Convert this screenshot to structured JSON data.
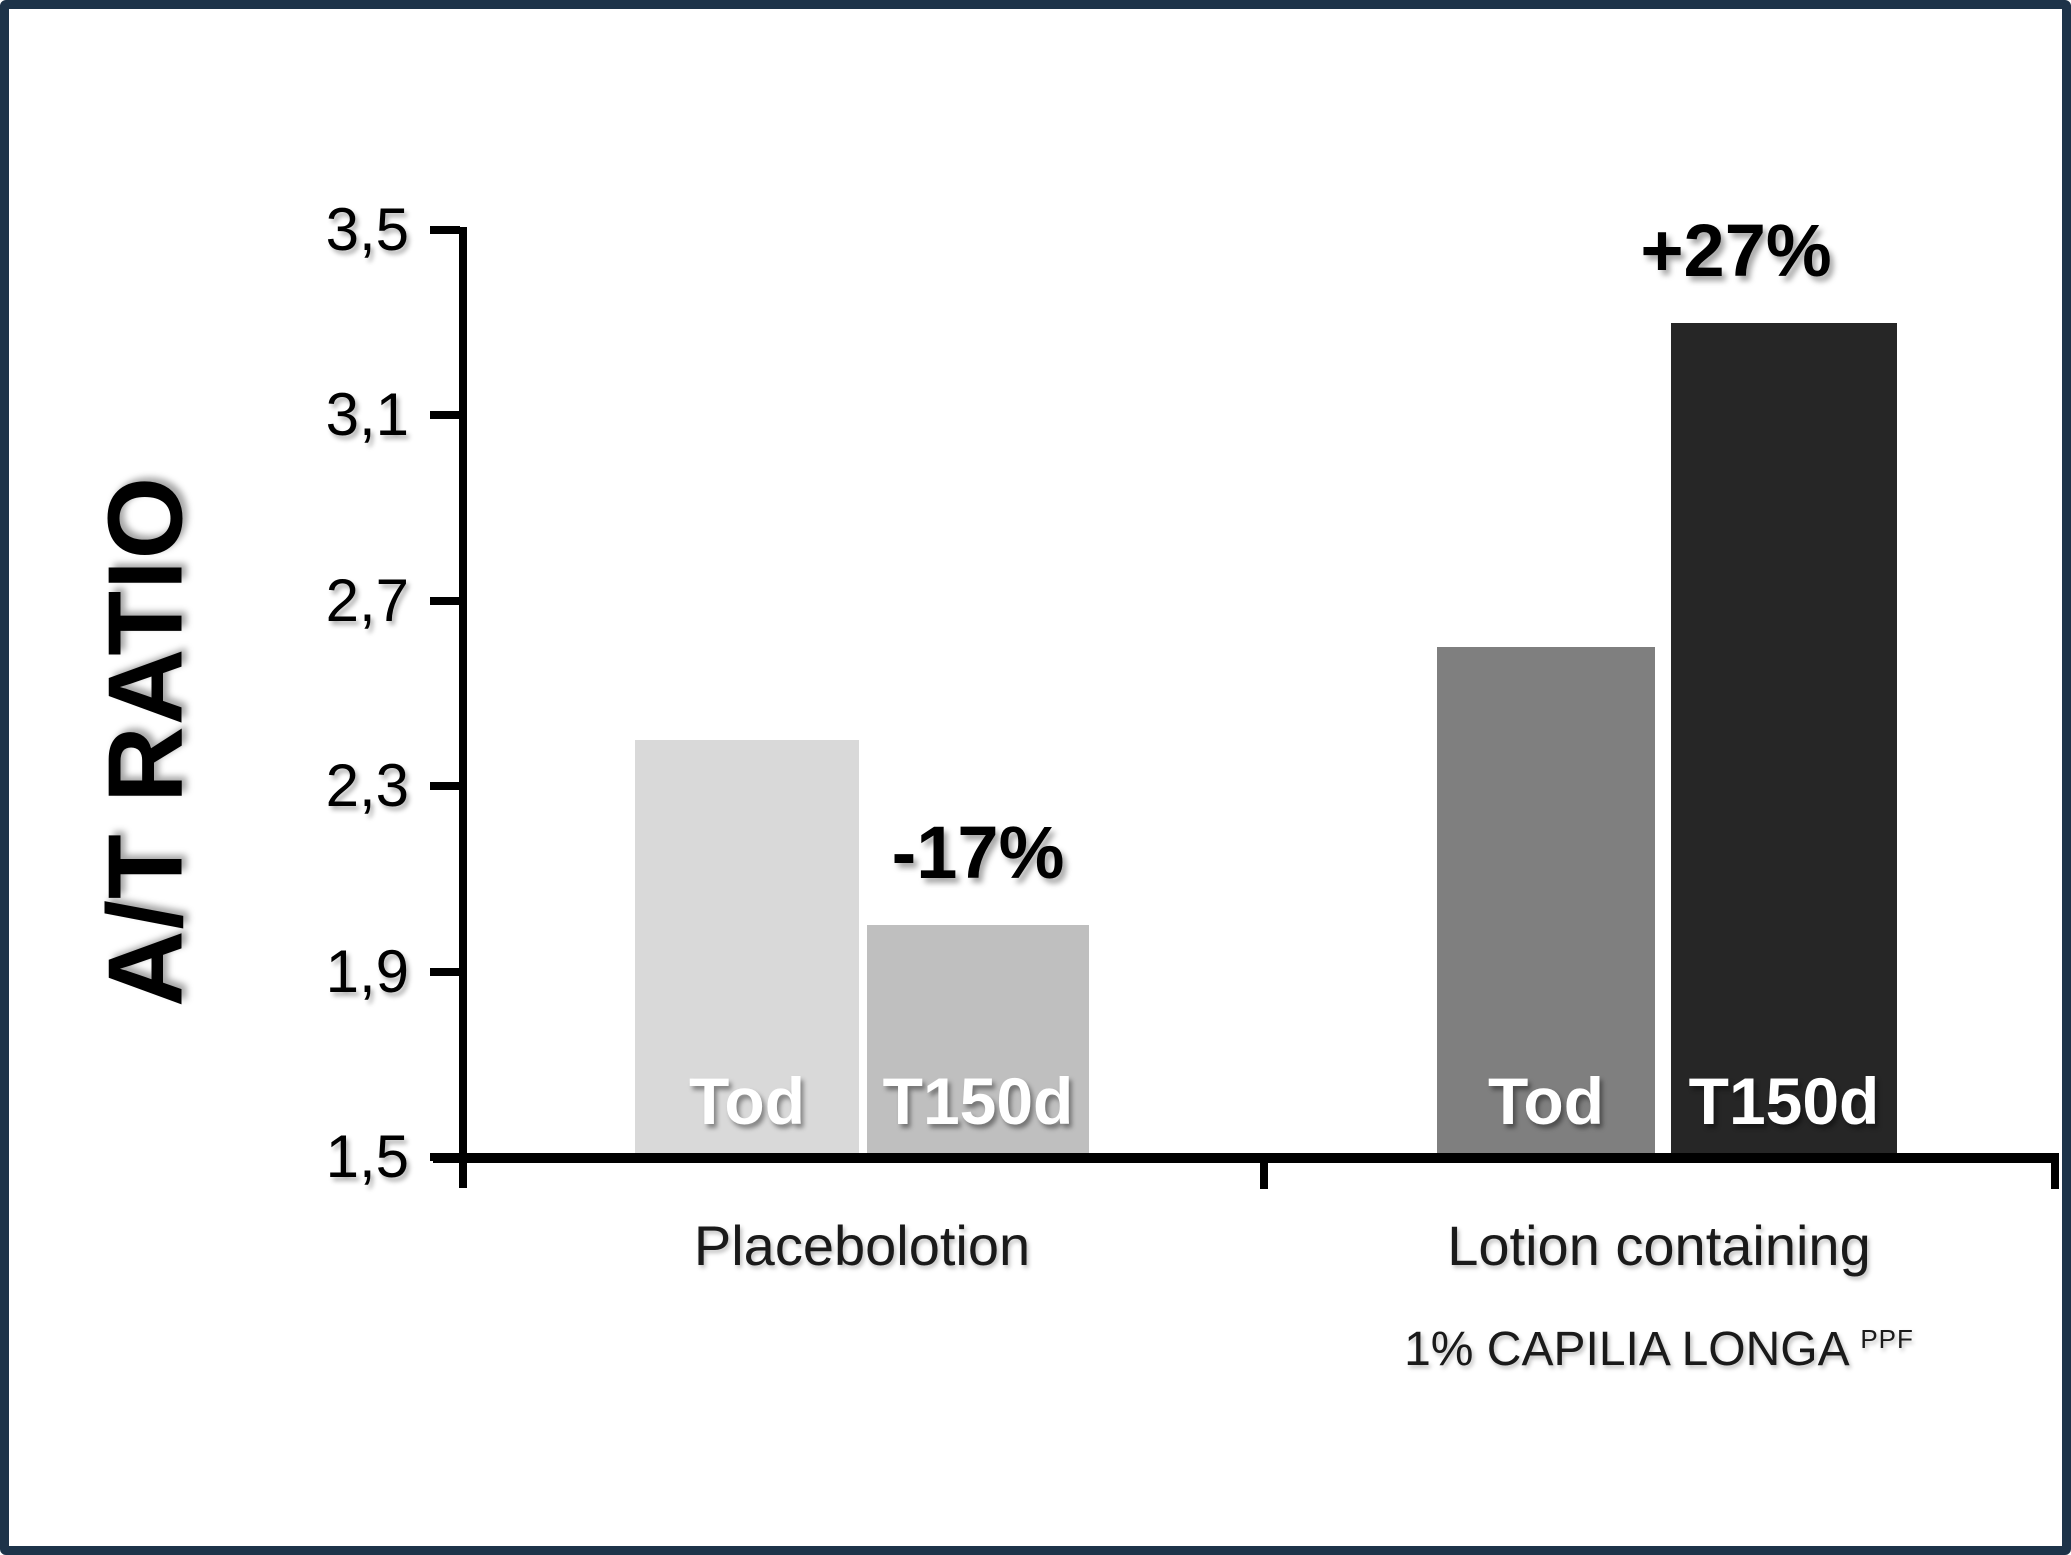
{
  "chart_data": {
    "type": "bar",
    "title": "",
    "ylabel": "A/T RATIO",
    "xlabel": "",
    "ylim": [
      1.5,
      3.5
    ],
    "ytick_values": [
      3.5,
      3.1,
      2.7,
      2.3,
      1.9,
      1.5
    ],
    "ytick_labels": [
      "3,5",
      "3,1",
      "2,7",
      "2,3",
      "1,9",
      "1,5"
    ],
    "decimal_separator": ",",
    "grid": false,
    "legend": "none",
    "axis_color": "#000000",
    "background_color": "#ffffff",
    "border_color": "#1d3349",
    "groups": [
      {
        "label_lines": [
          "Placebolotion"
        ],
        "label_superscript": "",
        "bars": [
          {
            "label": "Tod",
            "value": 2.4,
            "color": "#d9d9d9",
            "label_color": "#ffffff",
            "annotation": ""
          },
          {
            "label": "T150d",
            "value": 2.0,
            "color": "#bfbfbf",
            "label_color": "#ffffff",
            "annotation": "-17%"
          }
        ]
      },
      {
        "label_lines": [
          "Lotion containing",
          "1% CAPILIA LONGA"
        ],
        "label_superscript": "PPF",
        "bars": [
          {
            "label": "Tod",
            "value": 2.6,
            "color": "#7f7f7f",
            "label_color": "#ffffff",
            "annotation": ""
          },
          {
            "label": "T150d",
            "value": 3.3,
            "color": "#262626",
            "label_color": "#ffffff",
            "annotation": "+27%"
          }
        ]
      }
    ]
  }
}
